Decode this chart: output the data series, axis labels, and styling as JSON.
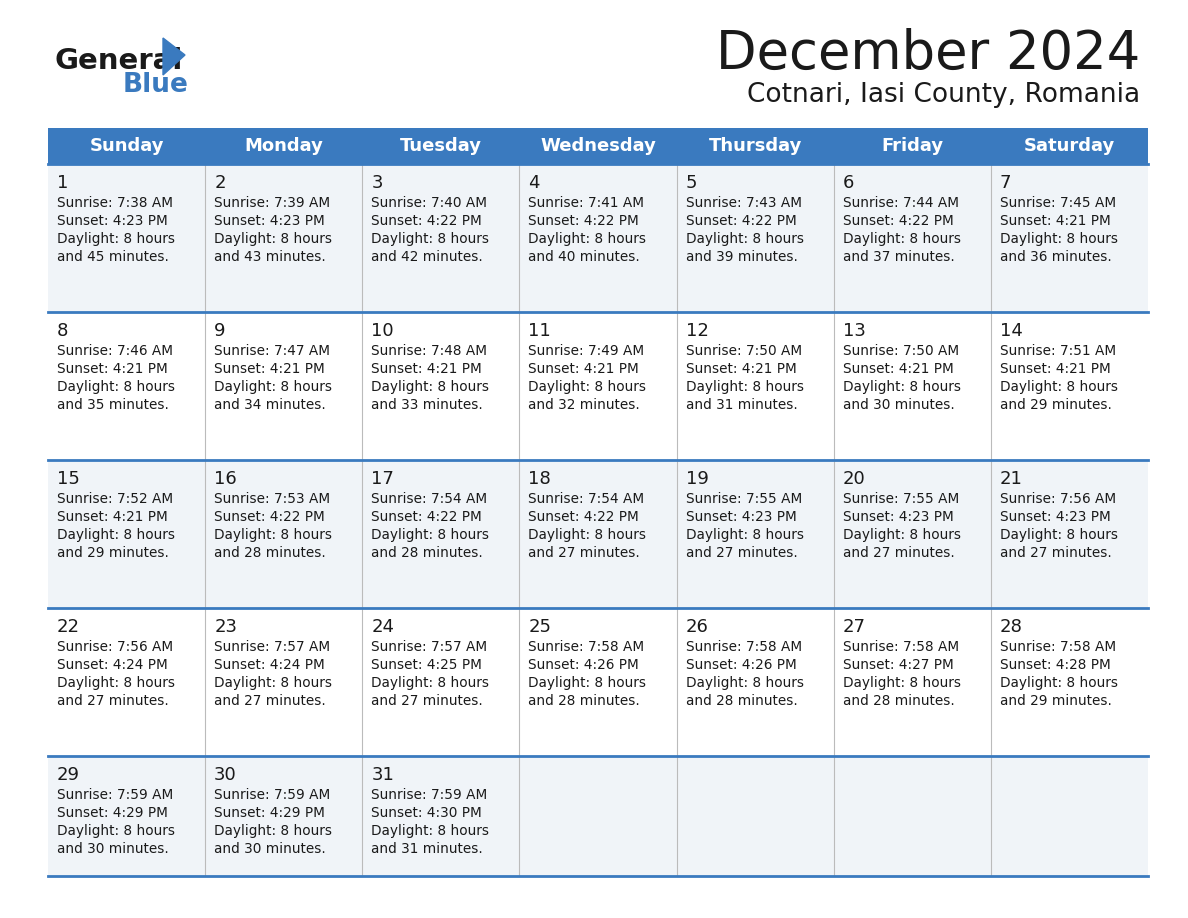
{
  "title": "December 2024",
  "subtitle": "Cotnari, Iasi County, Romania",
  "header_bg": "#3a7abf",
  "header_text": "#ffffff",
  "row_bg_light": "#f0f4f8",
  "row_bg_white": "#ffffff",
  "separator_color": "#3a7abf",
  "cell_line_color": "#aaaaaa",
  "days_of_week": [
    "Sunday",
    "Monday",
    "Tuesday",
    "Wednesday",
    "Thursday",
    "Friday",
    "Saturday"
  ],
  "calendar_data": [
    [
      {
        "day": "1",
        "sunrise": "7:38 AM",
        "sunset": "4:23 PM",
        "daylight": "8 hours",
        "daylight2": "and 45 minutes."
      },
      {
        "day": "2",
        "sunrise": "7:39 AM",
        "sunset": "4:23 PM",
        "daylight": "8 hours",
        "daylight2": "and 43 minutes."
      },
      {
        "day": "3",
        "sunrise": "7:40 AM",
        "sunset": "4:22 PM",
        "daylight": "8 hours",
        "daylight2": "and 42 minutes."
      },
      {
        "day": "4",
        "sunrise": "7:41 AM",
        "sunset": "4:22 PM",
        "daylight": "8 hours",
        "daylight2": "and 40 minutes."
      },
      {
        "day": "5",
        "sunrise": "7:43 AM",
        "sunset": "4:22 PM",
        "daylight": "8 hours",
        "daylight2": "and 39 minutes."
      },
      {
        "day": "6",
        "sunrise": "7:44 AM",
        "sunset": "4:22 PM",
        "daylight": "8 hours",
        "daylight2": "and 37 minutes."
      },
      {
        "day": "7",
        "sunrise": "7:45 AM",
        "sunset": "4:21 PM",
        "daylight": "8 hours",
        "daylight2": "and 36 minutes."
      }
    ],
    [
      {
        "day": "8",
        "sunrise": "7:46 AM",
        "sunset": "4:21 PM",
        "daylight": "8 hours",
        "daylight2": "and 35 minutes."
      },
      {
        "day": "9",
        "sunrise": "7:47 AM",
        "sunset": "4:21 PM",
        "daylight": "8 hours",
        "daylight2": "and 34 minutes."
      },
      {
        "day": "10",
        "sunrise": "7:48 AM",
        "sunset": "4:21 PM",
        "daylight": "8 hours",
        "daylight2": "and 33 minutes."
      },
      {
        "day": "11",
        "sunrise": "7:49 AM",
        "sunset": "4:21 PM",
        "daylight": "8 hours",
        "daylight2": "and 32 minutes."
      },
      {
        "day": "12",
        "sunrise": "7:50 AM",
        "sunset": "4:21 PM",
        "daylight": "8 hours",
        "daylight2": "and 31 minutes."
      },
      {
        "day": "13",
        "sunrise": "7:50 AM",
        "sunset": "4:21 PM",
        "daylight": "8 hours",
        "daylight2": "and 30 minutes."
      },
      {
        "day": "14",
        "sunrise": "7:51 AM",
        "sunset": "4:21 PM",
        "daylight": "8 hours",
        "daylight2": "and 29 minutes."
      }
    ],
    [
      {
        "day": "15",
        "sunrise": "7:52 AM",
        "sunset": "4:21 PM",
        "daylight": "8 hours",
        "daylight2": "and 29 minutes."
      },
      {
        "day": "16",
        "sunrise": "7:53 AM",
        "sunset": "4:22 PM",
        "daylight": "8 hours",
        "daylight2": "and 28 minutes."
      },
      {
        "day": "17",
        "sunrise": "7:54 AM",
        "sunset": "4:22 PM",
        "daylight": "8 hours",
        "daylight2": "and 28 minutes."
      },
      {
        "day": "18",
        "sunrise": "7:54 AM",
        "sunset": "4:22 PM",
        "daylight": "8 hours",
        "daylight2": "and 27 minutes."
      },
      {
        "day": "19",
        "sunrise": "7:55 AM",
        "sunset": "4:23 PM",
        "daylight": "8 hours",
        "daylight2": "and 27 minutes."
      },
      {
        "day": "20",
        "sunrise": "7:55 AM",
        "sunset": "4:23 PM",
        "daylight": "8 hours",
        "daylight2": "and 27 minutes."
      },
      {
        "day": "21",
        "sunrise": "7:56 AM",
        "sunset": "4:23 PM",
        "daylight": "8 hours",
        "daylight2": "and 27 minutes."
      }
    ],
    [
      {
        "day": "22",
        "sunrise": "7:56 AM",
        "sunset": "4:24 PM",
        "daylight": "8 hours",
        "daylight2": "and 27 minutes."
      },
      {
        "day": "23",
        "sunrise": "7:57 AM",
        "sunset": "4:24 PM",
        "daylight": "8 hours",
        "daylight2": "and 27 minutes."
      },
      {
        "day": "24",
        "sunrise": "7:57 AM",
        "sunset": "4:25 PM",
        "daylight": "8 hours",
        "daylight2": "and 27 minutes."
      },
      {
        "day": "25",
        "sunrise": "7:58 AM",
        "sunset": "4:26 PM",
        "daylight": "8 hours",
        "daylight2": "and 28 minutes."
      },
      {
        "day": "26",
        "sunrise": "7:58 AM",
        "sunset": "4:26 PM",
        "daylight": "8 hours",
        "daylight2": "and 28 minutes."
      },
      {
        "day": "27",
        "sunrise": "7:58 AM",
        "sunset": "4:27 PM",
        "daylight": "8 hours",
        "daylight2": "and 28 minutes."
      },
      {
        "day": "28",
        "sunrise": "7:58 AM",
        "sunset": "4:28 PM",
        "daylight": "8 hours",
        "daylight2": "and 29 minutes."
      }
    ],
    [
      {
        "day": "29",
        "sunrise": "7:59 AM",
        "sunset": "4:29 PM",
        "daylight": "8 hours",
        "daylight2": "and 30 minutes."
      },
      {
        "day": "30",
        "sunrise": "7:59 AM",
        "sunset": "4:29 PM",
        "daylight": "8 hours",
        "daylight2": "and 30 minutes."
      },
      {
        "day": "31",
        "sunrise": "7:59 AM",
        "sunset": "4:30 PM",
        "daylight": "8 hours",
        "daylight2": "and 31 minutes."
      },
      null,
      null,
      null,
      null
    ]
  ],
  "fig_width": 11.88,
  "fig_height": 9.18,
  "dpi": 100
}
